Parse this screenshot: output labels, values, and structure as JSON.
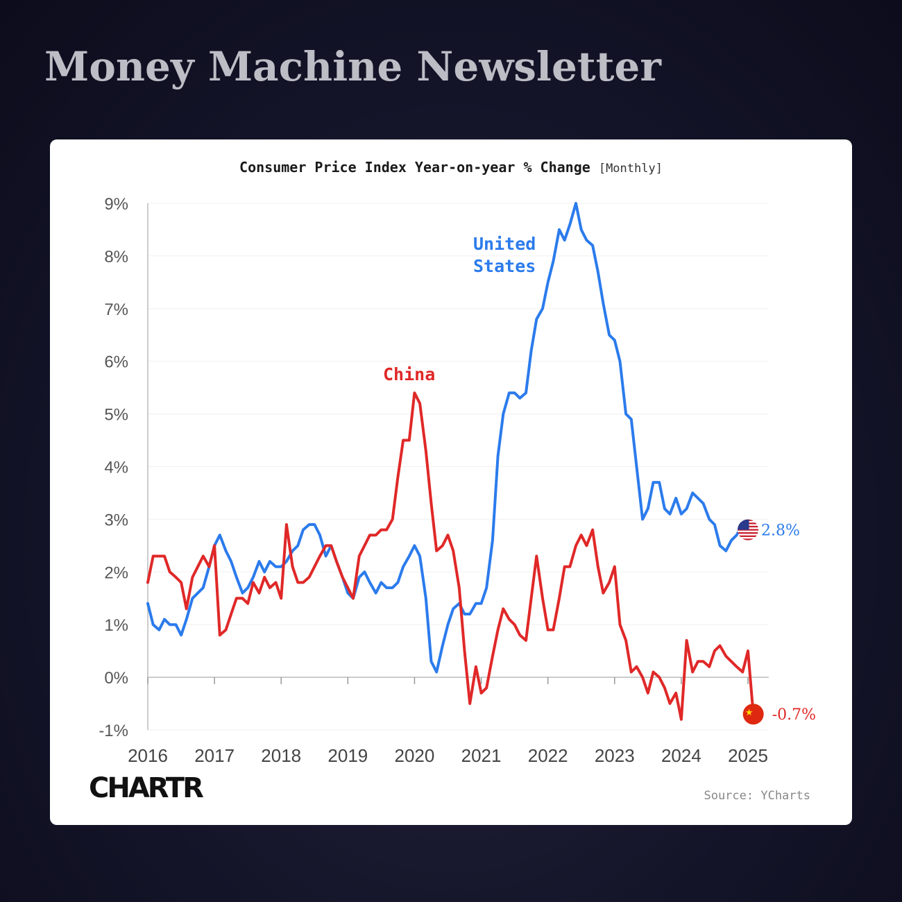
{
  "page": {
    "newsletter_title": "Money Machine Newsletter",
    "brand": "CHARTR",
    "source": "Source: YCharts"
  },
  "chart_data": {
    "type": "line",
    "title": "Consumer Price Index Year-on-year % Change",
    "subtitle": "[Monthly]",
    "ylim": [
      -1,
      9
    ],
    "yticks": [
      9,
      8,
      7,
      6,
      5,
      4,
      3,
      2,
      1,
      0,
      -1
    ],
    "ytick_labels": [
      "9%",
      "8%",
      "7%",
      "6%",
      "5%",
      "4%",
      "3%",
      "2%",
      "1%",
      "0%",
      "-1%"
    ],
    "x_range": [
      2016,
      2025
    ],
    "xticks": [
      2016,
      2017,
      2018,
      2019,
      2020,
      2021,
      2022,
      2023,
      2024,
      2025
    ],
    "xtick_labels": [
      "2016",
      "2017",
      "2018",
      "2019",
      "2020",
      "2021",
      "2022",
      "2023",
      "2024",
      "2025"
    ],
    "grid": "horizontal",
    "colors": {
      "us": "#2b7bec",
      "china": "#e02828"
    },
    "series": [
      {
        "name": "United States",
        "label_lines": [
          "United",
          "States"
        ],
        "color": "#2b7bec",
        "end_label": "2.8%",
        "points": [
          [
            2016.0,
            1.4
          ],
          [
            2016.08,
            1.0
          ],
          [
            2016.17,
            0.9
          ],
          [
            2016.25,
            1.1
          ],
          [
            2016.33,
            1.0
          ],
          [
            2016.42,
            1.0
          ],
          [
            2016.5,
            0.8
          ],
          [
            2016.58,
            1.1
          ],
          [
            2016.67,
            1.5
          ],
          [
            2016.75,
            1.6
          ],
          [
            2016.83,
            1.7
          ],
          [
            2016.92,
            2.1
          ],
          [
            2017.0,
            2.5
          ],
          [
            2017.08,
            2.7
          ],
          [
            2017.17,
            2.4
          ],
          [
            2017.25,
            2.2
          ],
          [
            2017.33,
            1.9
          ],
          [
            2017.42,
            1.6
          ],
          [
            2017.5,
            1.7
          ],
          [
            2017.58,
            1.9
          ],
          [
            2017.67,
            2.2
          ],
          [
            2017.75,
            2.0
          ],
          [
            2017.83,
            2.2
          ],
          [
            2017.92,
            2.1
          ],
          [
            2018.0,
            2.1
          ],
          [
            2018.08,
            2.2
          ],
          [
            2018.17,
            2.4
          ],
          [
            2018.25,
            2.5
          ],
          [
            2018.33,
            2.8
          ],
          [
            2018.42,
            2.9
          ],
          [
            2018.5,
            2.9
          ],
          [
            2018.58,
            2.7
          ],
          [
            2018.67,
            2.3
          ],
          [
            2018.75,
            2.5
          ],
          [
            2018.83,
            2.2
          ],
          [
            2018.92,
            1.9
          ],
          [
            2019.0,
            1.6
          ],
          [
            2019.08,
            1.5
          ],
          [
            2019.17,
            1.9
          ],
          [
            2019.25,
            2.0
          ],
          [
            2019.33,
            1.8
          ],
          [
            2019.42,
            1.6
          ],
          [
            2019.5,
            1.8
          ],
          [
            2019.58,
            1.7
          ],
          [
            2019.67,
            1.7
          ],
          [
            2019.75,
            1.8
          ],
          [
            2019.83,
            2.1
          ],
          [
            2019.92,
            2.3
          ],
          [
            2020.0,
            2.5
          ],
          [
            2020.08,
            2.3
          ],
          [
            2020.17,
            1.5
          ],
          [
            2020.25,
            0.3
          ],
          [
            2020.33,
            0.1
          ],
          [
            2020.42,
            0.6
          ],
          [
            2020.5,
            1.0
          ],
          [
            2020.58,
            1.3
          ],
          [
            2020.67,
            1.4
          ],
          [
            2020.75,
            1.2
          ],
          [
            2020.83,
            1.2
          ],
          [
            2020.92,
            1.4
          ],
          [
            2021.0,
            1.4
          ],
          [
            2021.08,
            1.7
          ],
          [
            2021.17,
            2.6
          ],
          [
            2021.25,
            4.2
          ],
          [
            2021.33,
            5.0
          ],
          [
            2021.42,
            5.4
          ],
          [
            2021.5,
            5.4
          ],
          [
            2021.58,
            5.3
          ],
          [
            2021.67,
            5.4
          ],
          [
            2021.75,
            6.2
          ],
          [
            2021.83,
            6.8
          ],
          [
            2021.92,
            7.0
          ],
          [
            2022.0,
            7.5
          ],
          [
            2022.08,
            7.9
          ],
          [
            2022.17,
            8.5
          ],
          [
            2022.25,
            8.3
          ],
          [
            2022.33,
            8.6
          ],
          [
            2022.42,
            9.0
          ],
          [
            2022.5,
            8.5
          ],
          [
            2022.58,
            8.3
          ],
          [
            2022.67,
            8.2
          ],
          [
            2022.75,
            7.7
          ],
          [
            2022.83,
            7.1
          ],
          [
            2022.92,
            6.5
          ],
          [
            2023.0,
            6.4
          ],
          [
            2023.08,
            6.0
          ],
          [
            2023.17,
            5.0
          ],
          [
            2023.25,
            4.9
          ],
          [
            2023.33,
            4.0
          ],
          [
            2023.42,
            3.0
          ],
          [
            2023.5,
            3.2
          ],
          [
            2023.58,
            3.7
          ],
          [
            2023.67,
            3.7
          ],
          [
            2023.75,
            3.2
          ],
          [
            2023.83,
            3.1
          ],
          [
            2023.92,
            3.4
          ],
          [
            2024.0,
            3.1
          ],
          [
            2024.08,
            3.2
          ],
          [
            2024.17,
            3.5
          ],
          [
            2024.25,
            3.4
          ],
          [
            2024.33,
            3.3
          ],
          [
            2024.42,
            3.0
          ],
          [
            2024.5,
            2.9
          ],
          [
            2024.58,
            2.5
          ],
          [
            2024.67,
            2.4
          ],
          [
            2024.75,
            2.6
          ],
          [
            2024.83,
            2.7
          ],
          [
            2024.92,
            2.9
          ],
          [
            2025.0,
            2.8
          ]
        ]
      },
      {
        "name": "China",
        "label_lines": [
          "China"
        ],
        "color": "#e02828",
        "end_label": "-0.7%",
        "points": [
          [
            2016.0,
            1.8
          ],
          [
            2016.08,
            2.3
          ],
          [
            2016.17,
            2.3
          ],
          [
            2016.25,
            2.3
          ],
          [
            2016.33,
            2.0
          ],
          [
            2016.42,
            1.9
          ],
          [
            2016.5,
            1.8
          ],
          [
            2016.58,
            1.3
          ],
          [
            2016.67,
            1.9
          ],
          [
            2016.75,
            2.1
          ],
          [
            2016.83,
            2.3
          ],
          [
            2016.92,
            2.1
          ],
          [
            2017.0,
            2.5
          ],
          [
            2017.08,
            0.8
          ],
          [
            2017.17,
            0.9
          ],
          [
            2017.25,
            1.2
          ],
          [
            2017.33,
            1.5
          ],
          [
            2017.42,
            1.5
          ],
          [
            2017.5,
            1.4
          ],
          [
            2017.58,
            1.8
          ],
          [
            2017.67,
            1.6
          ],
          [
            2017.75,
            1.9
          ],
          [
            2017.83,
            1.7
          ],
          [
            2017.92,
            1.8
          ],
          [
            2018.0,
            1.5
          ],
          [
            2018.08,
            2.9
          ],
          [
            2018.17,
            2.1
          ],
          [
            2018.25,
            1.8
          ],
          [
            2018.33,
            1.8
          ],
          [
            2018.42,
            1.9
          ],
          [
            2018.5,
            2.1
          ],
          [
            2018.58,
            2.3
          ],
          [
            2018.67,
            2.5
          ],
          [
            2018.75,
            2.5
          ],
          [
            2018.83,
            2.2
          ],
          [
            2018.92,
            1.9
          ],
          [
            2019.0,
            1.7
          ],
          [
            2019.08,
            1.5
          ],
          [
            2019.17,
            2.3
          ],
          [
            2019.25,
            2.5
          ],
          [
            2019.33,
            2.7
          ],
          [
            2019.42,
            2.7
          ],
          [
            2019.5,
            2.8
          ],
          [
            2019.58,
            2.8
          ],
          [
            2019.67,
            3.0
          ],
          [
            2019.75,
            3.8
          ],
          [
            2019.83,
            4.5
          ],
          [
            2019.92,
            4.5
          ],
          [
            2020.0,
            5.4
          ],
          [
            2020.08,
            5.2
          ],
          [
            2020.17,
            4.3
          ],
          [
            2020.25,
            3.3
          ],
          [
            2020.33,
            2.4
          ],
          [
            2020.42,
            2.5
          ],
          [
            2020.5,
            2.7
          ],
          [
            2020.58,
            2.4
          ],
          [
            2020.67,
            1.7
          ],
          [
            2020.75,
            0.5
          ],
          [
            2020.83,
            -0.5
          ],
          [
            2020.92,
            0.2
          ],
          [
            2021.0,
            -0.3
          ],
          [
            2021.08,
            -0.2
          ],
          [
            2021.17,
            0.4
          ],
          [
            2021.25,
            0.9
          ],
          [
            2021.33,
            1.3
          ],
          [
            2021.42,
            1.1
          ],
          [
            2021.5,
            1.0
          ],
          [
            2021.58,
            0.8
          ],
          [
            2021.67,
            0.7
          ],
          [
            2021.75,
            1.5
          ],
          [
            2021.83,
            2.3
          ],
          [
            2021.92,
            1.5
          ],
          [
            2022.0,
            0.9
          ],
          [
            2022.08,
            0.9
          ],
          [
            2022.17,
            1.5
          ],
          [
            2022.25,
            2.1
          ],
          [
            2022.33,
            2.1
          ],
          [
            2022.42,
            2.5
          ],
          [
            2022.5,
            2.7
          ],
          [
            2022.58,
            2.5
          ],
          [
            2022.67,
            2.8
          ],
          [
            2022.75,
            2.1
          ],
          [
            2022.83,
            1.6
          ],
          [
            2022.92,
            1.8
          ],
          [
            2023.0,
            2.1
          ],
          [
            2023.08,
            1.0
          ],
          [
            2023.17,
            0.7
          ],
          [
            2023.25,
            0.1
          ],
          [
            2023.33,
            0.2
          ],
          [
            2023.42,
            0.0
          ],
          [
            2023.5,
            -0.3
          ],
          [
            2023.58,
            0.1
          ],
          [
            2023.67,
            0.0
          ],
          [
            2023.75,
            -0.2
          ],
          [
            2023.83,
            -0.5
          ],
          [
            2023.92,
            -0.3
          ],
          [
            2024.0,
            -0.8
          ],
          [
            2024.08,
            0.7
          ],
          [
            2024.17,
            0.1
          ],
          [
            2024.25,
            0.3
          ],
          [
            2024.33,
            0.3
          ],
          [
            2024.42,
            0.2
          ],
          [
            2024.5,
            0.5
          ],
          [
            2024.58,
            0.6
          ],
          [
            2024.67,
            0.4
          ],
          [
            2024.75,
            0.3
          ],
          [
            2024.83,
            0.2
          ],
          [
            2024.92,
            0.1
          ],
          [
            2025.0,
            0.5
          ],
          [
            2025.08,
            -0.7
          ]
        ]
      }
    ]
  }
}
